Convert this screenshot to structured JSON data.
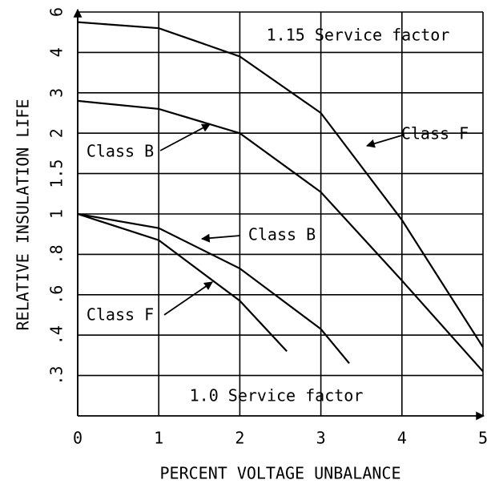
{
  "chart_data": {
    "type": "line",
    "xlabel": "PERCENT VOLTAGE UNBALANCE",
    "ylabel": "RELATIVE INSULATION LIFE",
    "xlim": [
      0,
      5
    ],
    "xticks": [
      0,
      1,
      2,
      3,
      4,
      5
    ],
    "ylim": [
      0.2,
      6
    ],
    "yticks": [
      6,
      4,
      3,
      2,
      {
        "value": 1.5,
        "label": "1.5"
      },
      1,
      {
        "value": 0.8,
        "label": ".8"
      },
      {
        "value": 0.6,
        "label": ".6"
      },
      {
        "value": 0.4,
        "label": ".4"
      },
      {
        "value": 0.3,
        "label": ".3"
      }
    ],
    "grid": true,
    "color": "#000000",
    "annotations": [
      "1.15 Service factor",
      "Class F",
      "Class B",
      "Class B",
      "Class F",
      "1.0 Service factor"
    ],
    "series": [
      {
        "color": "#000000",
        "x": [
          0,
          1,
          2,
          3,
          4,
          5
        ],
        "values": [
          5.5,
          5.2,
          3.9,
          2.5,
          0.97,
          0.37
        ]
      },
      {
        "color": "#000000",
        "x": [
          0,
          1,
          2,
          3,
          4,
          5
        ],
        "values": [
          2.8,
          2.6,
          2.0,
          1.27,
          0.67,
          0.31
        ]
      },
      {
        "color": "#000000",
        "x": [
          0,
          1,
          2,
          3,
          3.35
        ],
        "values": [
          1.0,
          0.93,
          0.73,
          0.43,
          0.33
        ]
      },
      {
        "color": "#000000",
        "x": [
          0,
          1,
          2,
          2.58
        ],
        "values": [
          1.0,
          0.87,
          0.57,
          0.36
        ]
      }
    ]
  }
}
